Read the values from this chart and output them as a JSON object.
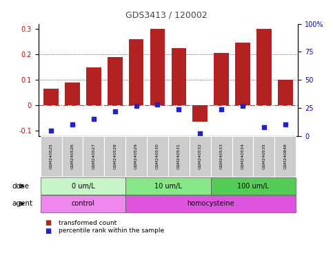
{
  "title": "GDS3413 / 120002",
  "samples": [
    "GSM240525",
    "GSM240526",
    "GSM240527",
    "GSM240528",
    "GSM240529",
    "GSM240530",
    "GSM240531",
    "GSM240532",
    "GSM240533",
    "GSM240534",
    "GSM240535",
    "GSM240848"
  ],
  "transformed_count": [
    0.065,
    0.09,
    0.15,
    0.19,
    0.26,
    0.3,
    0.225,
    -0.065,
    0.205,
    0.245,
    0.3,
    0.1
  ],
  "percentile_values": [
    5,
    10,
    15,
    22,
    27,
    28,
    24,
    2,
    24,
    27,
    8,
    10
  ],
  "bar_color": "#b22222",
  "dot_color": "#2222cc",
  "zero_line_color": "#cc3333",
  "grid_color": "#000000",
  "ylim_left": [
    -0.12,
    0.32
  ],
  "ylim_right": [
    0,
    100
  ],
  "yticks_left": [
    -0.1,
    0.0,
    0.1,
    0.2,
    0.3
  ],
  "yticks_right": [
    0,
    25,
    50,
    75,
    100
  ],
  "dose_groups": [
    {
      "label": "0 um/L",
      "start": 0,
      "end": 3,
      "color": "#c8f5c8"
    },
    {
      "label": "10 um/L",
      "start": 4,
      "end": 7,
      "color": "#88e888"
    },
    {
      "label": "100 um/L",
      "start": 8,
      "end": 11,
      "color": "#55cc55"
    }
  ],
  "agent_groups": [
    {
      "label": "control",
      "start": 0,
      "end": 3,
      "color": "#ee88ee"
    },
    {
      "label": "homocysteine",
      "start": 4,
      "end": 11,
      "color": "#dd55dd"
    }
  ],
  "legend_items": [
    {
      "label": "transformed count",
      "color": "#b22222"
    },
    {
      "label": "percentile rank within the sample",
      "color": "#2222cc"
    }
  ],
  "dose_label": "dose",
  "agent_label": "agent",
  "sample_box_color": "#cccccc",
  "background_color": "#ffffff",
  "axis_label_color_left": "#cc0000",
  "axis_label_color_right": "#0000cc"
}
